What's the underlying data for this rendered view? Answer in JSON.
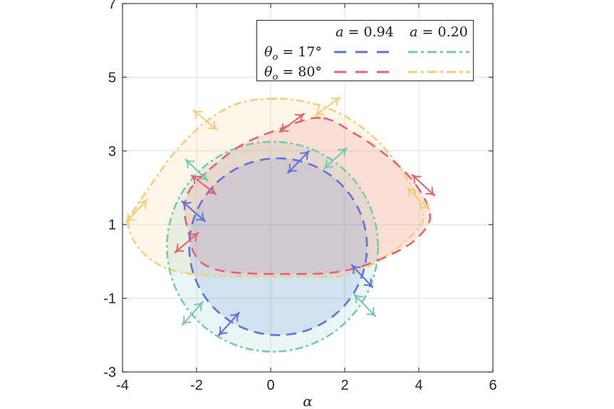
{
  "legend": {
    "cols": [
      {
        "var": "a",
        "rest": " = 0.94"
      },
      {
        "var": "a",
        "rest": " = 0.20"
      }
    ],
    "rows": [
      {
        "sym": "θ",
        "sub": "o",
        "rest": " = 17°"
      },
      {
        "sym": "θ",
        "sub": "o",
        "rest": " = 80°"
      }
    ]
  },
  "chart_data": {
    "type": "line",
    "description": "Four closed critical-curve contours with double-headed polarization tick arrows",
    "xlabel": "α",
    "xlim": [
      -4,
      6
    ],
    "ylim": [
      -3,
      7
    ],
    "x_ticks": [
      -4,
      -2,
      0,
      2,
      4,
      6
    ],
    "x_tick_labels": [
      "-4",
      "-2",
      "0",
      "2",
      "4",
      "6"
    ],
    "y_ticks": [
      7,
      5,
      3,
      1,
      -1,
      -3
    ],
    "y_tick_labels": [
      "7",
      "5",
      "3",
      "1",
      "-1",
      "-3"
    ],
    "grid": true,
    "legend_position": "top-right",
    "fill_opacity": 0.16,
    "series": [
      {
        "id": "a094-th17",
        "name": "a = 0.94, θo = 17°",
        "color": "#5B74DF",
        "dash": "dashed",
        "shape": "circle",
        "center": [
          0.2,
          0.4
        ],
        "radius": 2.4
      },
      {
        "id": "a020-th17",
        "name": "a = 0.20, θo = 17°",
        "color": "#78C9B2",
        "dash": "dashdot",
        "shape": "circle",
        "center": [
          0.05,
          0.4
        ],
        "radius": 2.85
      },
      {
        "id": "a094-th80",
        "name": "a = 0.94, θo = 80°",
        "color": "#E8636C",
        "dash": "dashed",
        "shape": "polygon",
        "points": [
          [
            1.35,
            3.9
          ],
          [
            0.2,
            3.58
          ],
          [
            -0.8,
            3.15
          ],
          [
            -1.65,
            2.5
          ],
          [
            -2.18,
            1.95
          ],
          [
            -2.33,
            1.4
          ],
          [
            -2.22,
            0.8
          ],
          [
            -2.08,
            0.25
          ],
          [
            -1.8,
            -0.08
          ],
          [
            -1.3,
            -0.26
          ],
          [
            -0.5,
            -0.33
          ],
          [
            0.5,
            -0.34
          ],
          [
            1.5,
            -0.32
          ],
          [
            2.3,
            -0.18
          ],
          [
            3.1,
            0.12
          ],
          [
            3.8,
            0.5
          ],
          [
            4.22,
            0.95
          ],
          [
            4.3,
            1.3
          ],
          [
            4.1,
            1.8
          ],
          [
            3.7,
            2.35
          ],
          [
            3.1,
            2.9
          ],
          [
            2.3,
            3.45
          ]
        ]
      },
      {
        "id": "a020-th80",
        "name": "a = 0.20, θo = 80°",
        "color": "#F6CE77",
        "dash": "dashdot",
        "shape": "polygon",
        "points": [
          [
            0.1,
            4.42
          ],
          [
            -0.9,
            4.28
          ],
          [
            -1.8,
            3.75
          ],
          [
            -2.6,
            2.95
          ],
          [
            -3.25,
            2.05
          ],
          [
            -3.65,
            1.45
          ],
          [
            -3.85,
            1.0
          ],
          [
            -3.55,
            0.35
          ],
          [
            -2.9,
            -0.15
          ],
          [
            -2.0,
            -0.36
          ],
          [
            -1.0,
            -0.4
          ],
          [
            0.0,
            -0.41
          ],
          [
            1.0,
            -0.41
          ],
          [
            2.0,
            -0.38
          ],
          [
            2.7,
            -0.1
          ],
          [
            3.4,
            0.35
          ],
          [
            3.95,
            0.85
          ],
          [
            4.12,
            1.2
          ],
          [
            3.95,
            1.75
          ],
          [
            3.45,
            2.6
          ],
          [
            2.75,
            3.4
          ],
          [
            1.9,
            4.0
          ],
          [
            1.0,
            4.32
          ]
        ]
      }
    ],
    "polarization_arrows": [
      {
        "series": 0,
        "x": 0.75,
        "y": 2.7,
        "angle": 46,
        "len": 0.82
      },
      {
        "series": 0,
        "x": -2.08,
        "y": 1.36,
        "angle": -41,
        "len": 0.82
      },
      {
        "series": 0,
        "x": -1.13,
        "y": -1.7,
        "angle": 48,
        "len": 0.82
      },
      {
        "series": 0,
        "x": 2.47,
        "y": -0.4,
        "angle": -47,
        "len": 0.82
      },
      {
        "series": 1,
        "x": 1.75,
        "y": 2.8,
        "angle": 42,
        "len": 0.82
      },
      {
        "series": 1,
        "x": -2.0,
        "y": 2.48,
        "angle": -44,
        "len": 0.82
      },
      {
        "series": 1,
        "x": -2.11,
        "y": -1.41,
        "angle": 48,
        "len": 0.82
      },
      {
        "series": 1,
        "x": 2.54,
        "y": -1.19,
        "angle": -46,
        "len": 0.82
      },
      {
        "series": 2,
        "x": 0.57,
        "y": 3.76,
        "angle": 37,
        "len": 0.82
      },
      {
        "series": 2,
        "x": -1.81,
        "y": 2.08,
        "angle": -38,
        "len": 0.82
      },
      {
        "series": 2,
        "x": -2.27,
        "y": 0.51,
        "angle": 40,
        "len": 0.82
      },
      {
        "series": 2,
        "x": 4.12,
        "y": 2.07,
        "angle": -43,
        "len": 0.82
      },
      {
        "series": 3,
        "x": -1.77,
        "y": 3.84,
        "angle": -40,
        "len": 0.82
      },
      {
        "series": 3,
        "x": 1.54,
        "y": 4.21,
        "angle": 36,
        "len": 0.82
      },
      {
        "series": 3,
        "x": -3.62,
        "y": 1.37,
        "angle": 47,
        "len": 0.82
      },
      {
        "series": 3,
        "x": 3.99,
        "y": 1.7,
        "angle": -44,
        "len": 0.82
      }
    ]
  }
}
